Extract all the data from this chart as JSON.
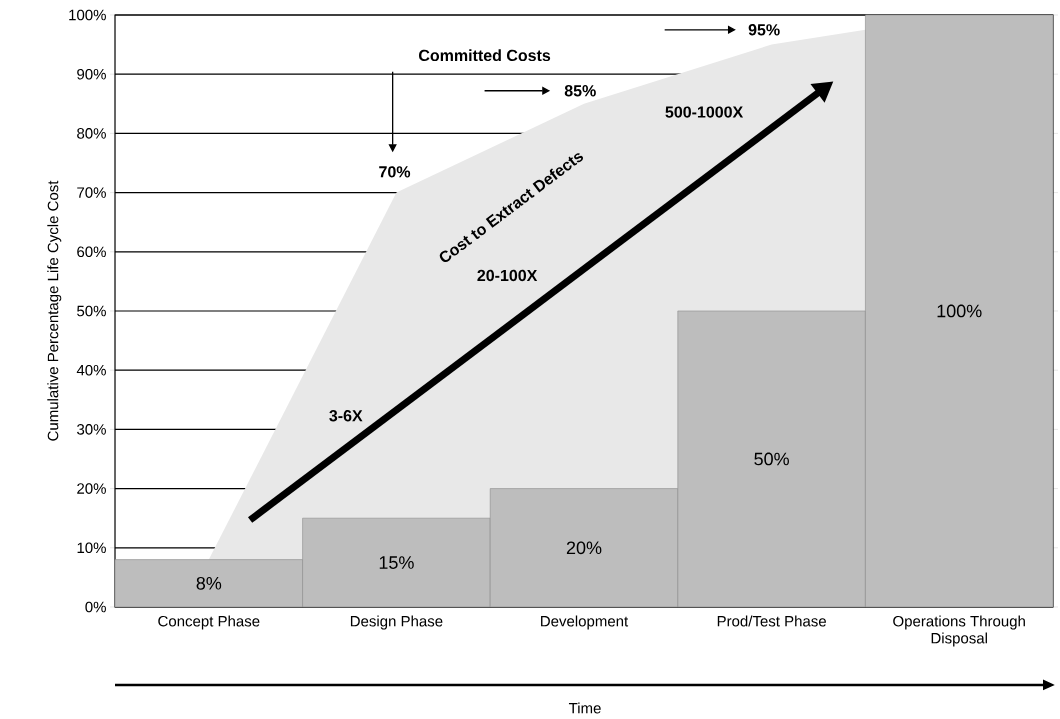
{
  "chart_data": {
    "type": "bar",
    "ylabel": "Cumulative Percentage Life Cycle Cost",
    "xlabel": "Time",
    "categories": [
      "Concept Phase",
      "Design Phase",
      "Development",
      "Prod/Test Phase",
      "Operations Through Disposal"
    ],
    "series": [
      {
        "type": "area",
        "color": "#e8e8e8",
        "values": [
          8,
          70,
          85,
          95,
          100
        ]
      },
      {
        "color": "#bdbdbd",
        "values": [
          8,
          15,
          20,
          50,
          100
        ],
        "value_labels": [
          "8%",
          "15%",
          "20%",
          "50%",
          "100%"
        ]
      }
    ],
    "ylim": [
      0,
      100
    ],
    "yticks": [
      {
        "value": 0,
        "label": "0%"
      },
      {
        "value": 10,
        "label": "10%"
      },
      {
        "value": 20,
        "label": "20%"
      },
      {
        "value": 30,
        "label": "30%"
      },
      {
        "value": 40,
        "label": "40%"
      },
      {
        "value": 50,
        "label": "50%"
      },
      {
        "value": 60,
        "label": "60%"
      },
      {
        "value": 70,
        "label": "70%"
      },
      {
        "value": 80,
        "label": "80%"
      },
      {
        "value": 90,
        "label": "90%"
      },
      {
        "value": 100,
        "label": "100%"
      }
    ],
    "grid": "y",
    "annotations": [
      "Committed Costs",
      "70%",
      "85%",
      "95%",
      "Cost to Extract Defects",
      "3-6X",
      "20-100X",
      "500-1000X"
    ]
  }
}
